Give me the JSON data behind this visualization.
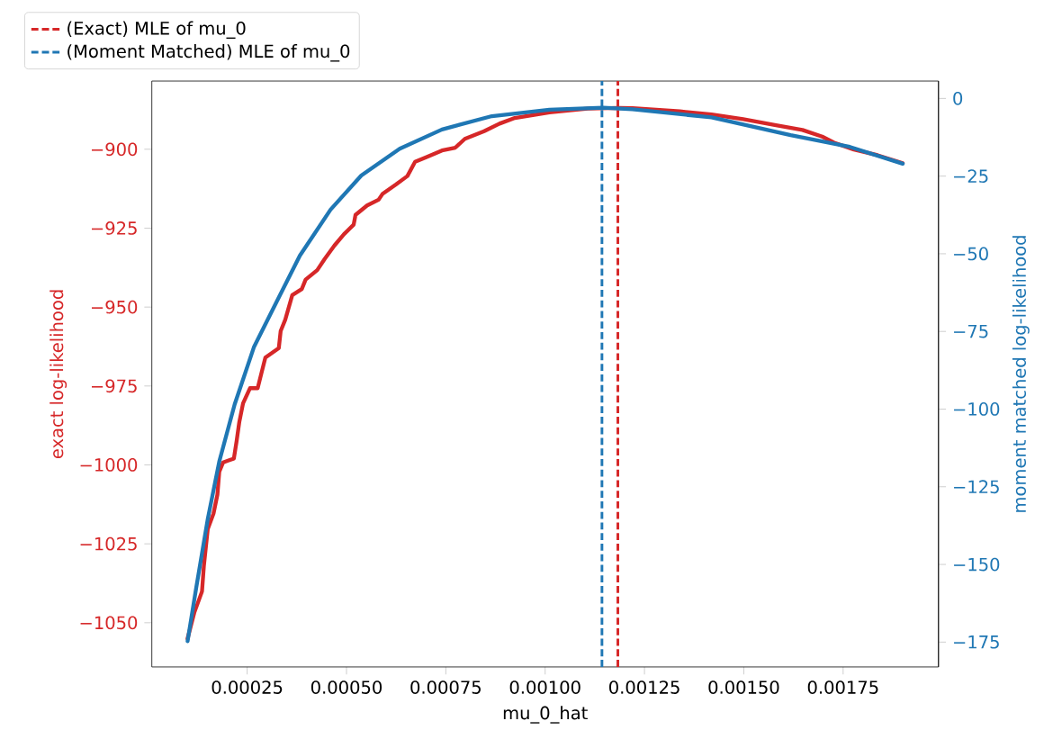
{
  "chart_data": {
    "type": "line",
    "xlabel": "mu_0_hat",
    "ylabel": "exact log-likelihood",
    "y2label": "moment matched log-likelihood",
    "series": [
      {
        "color": "#d62728",
        "x": [
          0.0001,
          0.0001169,
          0.0001363,
          0.000141,
          0.0001508,
          0.0001653,
          0.0001751,
          0.0001797,
          0.0001895,
          0.0002165,
          0.0002234,
          0.0002301,
          0.0002396,
          0.000257,
          0.0002764,
          0.0002862,
          0.0002958,
          0.0003296,
          0.0003343,
          0.0003459,
          0.0003635,
          0.0003875,
          0.0003971,
          0.0004263,
          0.0004454,
          0.0004697,
          0.0004938,
          0.000518,
          0.0005227,
          0.0005519,
          0.0005808,
          0.0005904,
          0.0006243,
          0.0006532,
          0.0006726,
          0.0007016,
          0.0007403,
          0.0007739,
          0.000798,
          0.0008465,
          0.0008851,
          0.0009238,
          0.0010107,
          0.0011073,
          0.0011846,
          0.0012198,
          0.0013392,
          0.0014187,
          0.0014984,
          0.0015779,
          0.0016476,
          0.0016973,
          0.0017272,
          0.0017771,
          0.0018367,
          0.0019
        ],
        "values": [
          -1055,
          -1046.8,
          -1040.1,
          -1032,
          -1020.3,
          -1015.4,
          -1009.4,
          -1002.2,
          -999.2,
          -998,
          -992.5,
          -986.5,
          -980.5,
          -975.7,
          -975.7,
          -970.8,
          -966,
          -963,
          -957.6,
          -954,
          -946.2,
          -944.3,
          -941.3,
          -938.3,
          -934.7,
          -930.5,
          -926.9,
          -923.9,
          -920.8,
          -917.8,
          -916,
          -914.2,
          -911.2,
          -908.5,
          -904,
          -902.5,
          -900.4,
          -899.5,
          -896.7,
          -894.3,
          -891.9,
          -890.1,
          -888.3,
          -887.1,
          -886.9,
          -887,
          -888,
          -889,
          -890.5,
          -892.3,
          -893.9,
          -896,
          -897.9,
          -900.1,
          -901.9,
          -904.4
        ]
      },
      {
        "color": "#1f77b4",
        "axis": "y2",
        "x": [
          0.0001,
          0.0001218,
          0.0001508,
          0.0001797,
          0.0002185,
          0.0002668,
          0.0003247,
          0.0003826,
          0.0004599,
          0.0005372,
          0.0006339,
          0.0007403,
          0.0008659,
          0.0010107,
          0.0011461,
          0.0012198,
          0.0014187,
          0.0016178,
          0.001767,
          0.0019
        ],
        "values": [
          -174.7,
          -157.5,
          -135.4,
          -116.9,
          -98.5,
          -80.1,
          -65.3,
          -50.6,
          -35.8,
          -24.8,
          -16.2,
          -10,
          -5.7,
          -3.6,
          -3,
          -3.5,
          -6.1,
          -11.8,
          -15.6,
          -21
        ]
      }
    ],
    "xlim": [
      1e-05,
      0.00199
    ],
    "ylim": [
      -1064,
      -878.4
    ],
    "y2lim": [
      -183,
      5.6
    ],
    "xticks": [
      0.00025,
      {
        "value": 0.0005,
        "label": "0.00050"
      },
      {
        "value": 0.00075,
        "label": "0.00075"
      },
      {
        "value": 0.001,
        "label": "0.00100"
      },
      {
        "value": 0.00125,
        "label": "0.00125"
      },
      {
        "value": 0.0015,
        "label": "0.00150"
      },
      {
        "value": 0.00175,
        "label": "0.00175"
      }
    ],
    "yticks": [
      {
        "value": -1050,
        "label": "−1050"
      },
      {
        "value": -1025,
        "label": "−1025"
      },
      {
        "value": -1000,
        "label": "−1000"
      },
      {
        "value": -975,
        "label": "−975"
      },
      {
        "value": -950,
        "label": "−950"
      },
      {
        "value": -925,
        "label": "−925"
      },
      {
        "value": -900,
        "label": "−900"
      }
    ],
    "y2ticks": [
      {
        "value": -175,
        "label": "−175"
      },
      {
        "value": -150,
        "label": "−150"
      },
      {
        "value": -125,
        "label": "−125"
      },
      {
        "value": -100,
        "label": "−100"
      },
      {
        "value": -75,
        "label": "−75"
      },
      {
        "value": -50,
        "label": "−50"
      },
      {
        "value": -25,
        "label": "−25"
      },
      0
    ],
    "ref_lines": [
      {
        "axis": "x",
        "value": 0.001183,
        "label": "(Exact) MLE of mu_0",
        "color": "#d62728",
        "line_style": "dashed"
      },
      {
        "axis": "x",
        "value": 0.001143,
        "label": "(Moment Matched) MLE of mu_0",
        "color": "#1f77b4",
        "line_style": "dashed"
      }
    ],
    "legend": "top left"
  }
}
